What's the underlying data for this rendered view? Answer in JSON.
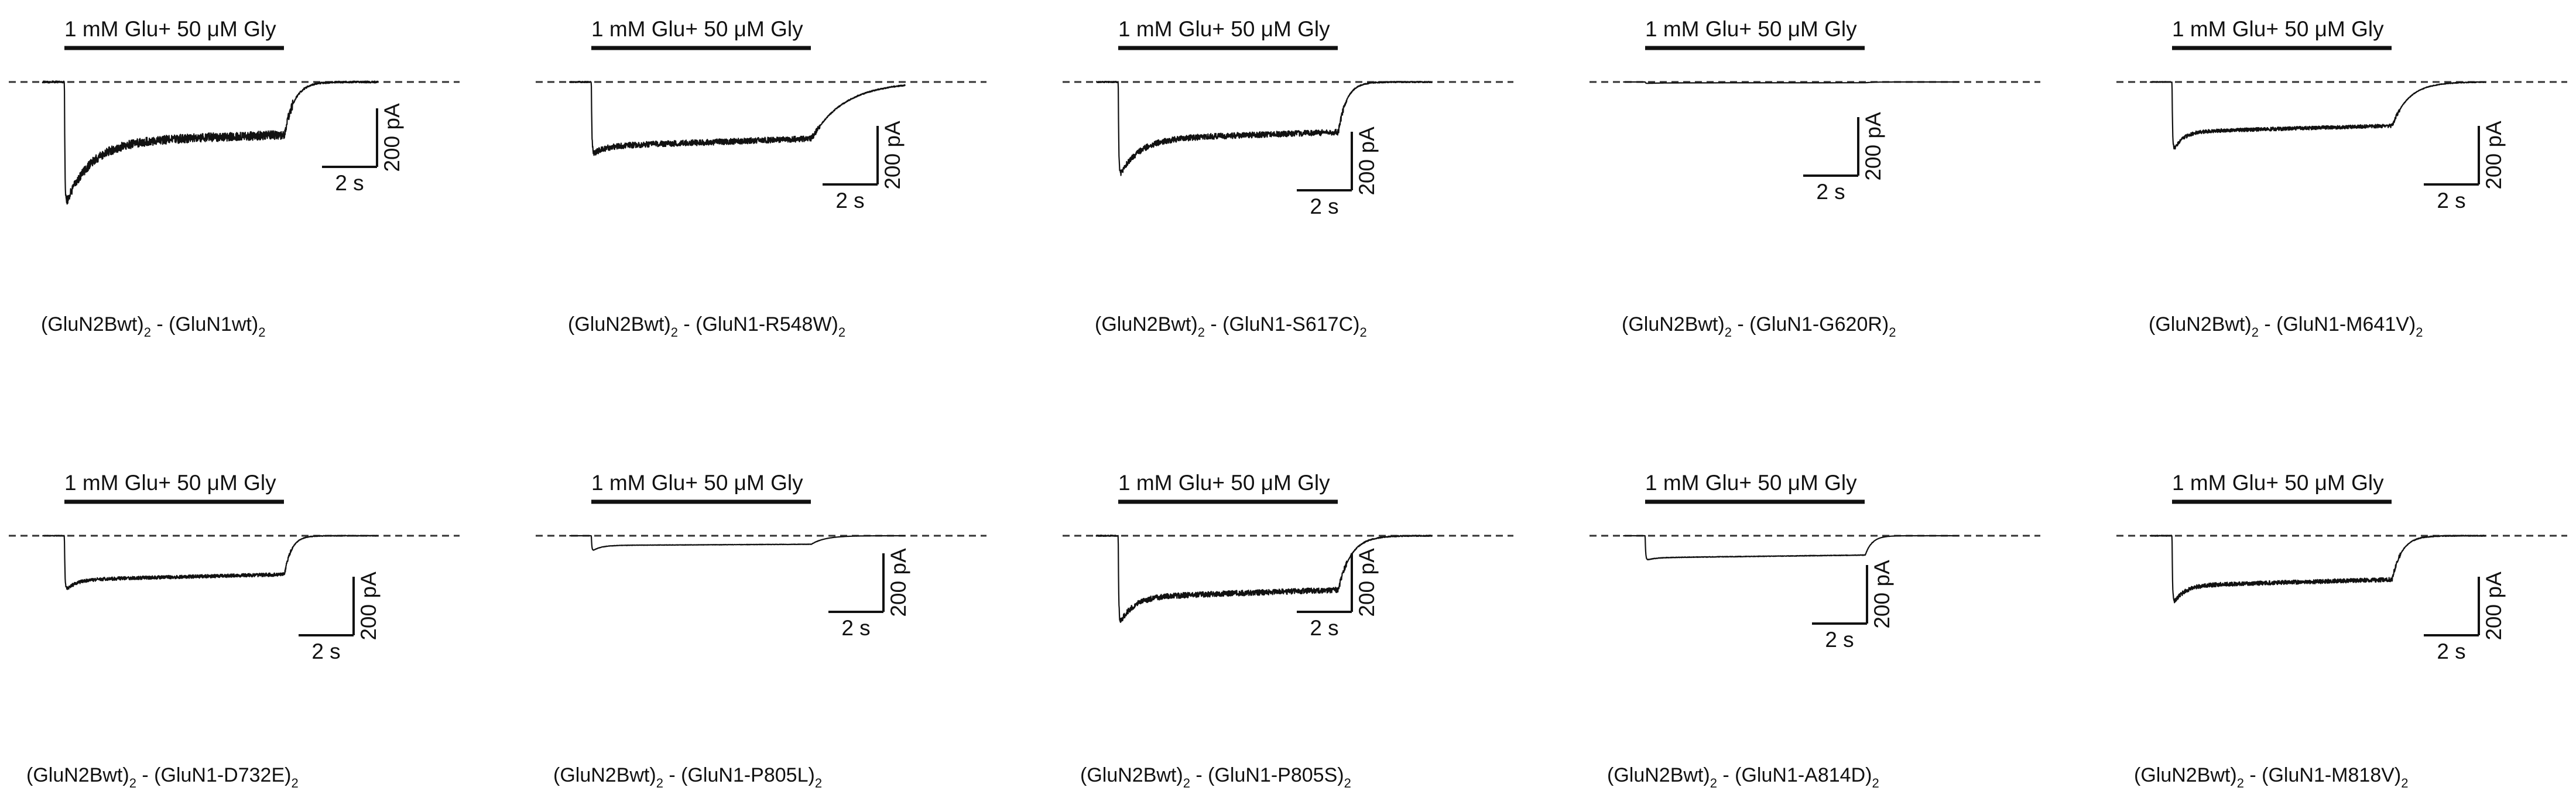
{
  "figure": {
    "agonist_label": "1 mM Glu+ 50 μM Gly",
    "scale_time_label": "2 s",
    "scale_current_label": "200 pA",
    "trace_color": "#111111",
    "baseline_style": "dashed"
  },
  "chart_data": [
    {
      "type": "line",
      "panel": "GluN1wt",
      "caption_parts": [
        "(GluN2Bwt)",
        "2",
        " - (GluN1wt)",
        "2"
      ],
      "x_unit": "s",
      "y_unit": "pA",
      "agonist_window_s": [
        0.8,
        8.8
      ],
      "peak_pA": -430,
      "steady_pA": -205,
      "peak_decay_tau_s": 0.9,
      "deact_tau_s": 0.35,
      "noise": 0.035
    },
    {
      "type": "line",
      "panel": "GluN1-R548W",
      "caption_parts": [
        "(GluN2Bwt)",
        "2",
        " - (GluN1-R548W)",
        "2"
      ],
      "x_unit": "s",
      "y_unit": "pA",
      "agonist_window_s": [
        0.8,
        8.8
      ],
      "peak_pA": -250,
      "steady_pA": -220,
      "peak_decay_tau_s": 0.4,
      "deact_tau_s": 1.2,
      "noise": 0.04
    },
    {
      "type": "line",
      "panel": "GluN1-S617C",
      "caption_parts": [
        "(GluN2Bwt)",
        "2",
        " - (GluN1-S617C)",
        "2"
      ],
      "x_unit": "s",
      "y_unit": "pA",
      "agonist_window_s": [
        0.8,
        8.8
      ],
      "peak_pA": -330,
      "steady_pA": -195,
      "peak_decay_tau_s": 0.7,
      "deact_tau_s": 0.3,
      "noise": 0.03
    },
    {
      "type": "line",
      "panel": "GluN1-G620R",
      "caption_parts": [
        "(GluN2Bwt)",
        "2",
        " - (GluN1-G620R)",
        "2"
      ],
      "x_unit": "s",
      "y_unit": "pA",
      "agonist_window_s": [
        0.8,
        8.8
      ],
      "peak_pA": -5,
      "steady_pA": -3,
      "peak_decay_tau_s": 0.5,
      "deact_tau_s": 0.3,
      "noise": 0.005
    },
    {
      "type": "line",
      "panel": "GluN1-M641V",
      "caption_parts": [
        "(GluN2Bwt)",
        "2",
        " - (GluN1-M641V)",
        "2"
      ],
      "x_unit": "s",
      "y_unit": "pA",
      "agonist_window_s": [
        0.8,
        8.8
      ],
      "peak_pA": -245,
      "steady_pA": -170,
      "peak_decay_tau_s": 0.35,
      "deact_tau_s": 0.6,
      "noise": 0.025
    },
    {
      "type": "line",
      "panel": "GluN1-D732E",
      "caption_parts": [
        "(GluN2Bwt)",
        "2",
        " - (GluN1-D732E)",
        "2"
      ],
      "x_unit": "s",
      "y_unit": "pA",
      "agonist_window_s": [
        0.8,
        8.8
      ],
      "peak_pA": -190,
      "steady_pA": -150,
      "peak_decay_tau_s": 0.4,
      "deact_tau_s": 0.25,
      "noise": 0.03
    },
    {
      "type": "line",
      "panel": "GluN1-P805L",
      "caption_parts": [
        "(GluN2Bwt)",
        "2",
        " - (GluN1-P805L)",
        "2"
      ],
      "x_unit": "s",
      "y_unit": "pA",
      "agonist_window_s": [
        0.8,
        8.8
      ],
      "peak_pA": -55,
      "steady_pA": -33,
      "peak_decay_tau_s": 0.3,
      "deact_tau_s": 0.5,
      "noise": 0.01
    },
    {
      "type": "line",
      "panel": "GluN1-P805S",
      "caption_parts": [
        "(GluN2Bwt)",
        "2",
        " - (GluN1-P805S)",
        "2"
      ],
      "x_unit": "s",
      "y_unit": "pA",
      "agonist_window_s": [
        0.8,
        8.8
      ],
      "peak_pA": -310,
      "steady_pA": -210,
      "peak_decay_tau_s": 0.5,
      "deact_tau_s": 0.45,
      "noise": 0.03
    },
    {
      "type": "line",
      "panel": "GluN1-A814D",
      "caption_parts": [
        "(GluN2Bwt)",
        "2",
        " - (GluN1-A814D)",
        "2"
      ],
      "x_unit": "s",
      "y_unit": "pA",
      "agonist_window_s": [
        0.8,
        8.8
      ],
      "peak_pA": -85,
      "steady_pA": -75,
      "peak_decay_tau_s": 0.3,
      "deact_tau_s": 0.25,
      "noise": 0.01
    },
    {
      "type": "line",
      "panel": "GluN1-M818V",
      "caption_parts": [
        "(GluN2Bwt)",
        "2",
        " - (GluN1-M818V)",
        "2"
      ],
      "x_unit": "s",
      "y_unit": "pA",
      "agonist_window_s": [
        0.8,
        8.8
      ],
      "peak_pA": -240,
      "steady_pA": -170,
      "peak_decay_tau_s": 0.4,
      "deact_tau_s": 0.35,
      "noise": 0.03
    }
  ]
}
